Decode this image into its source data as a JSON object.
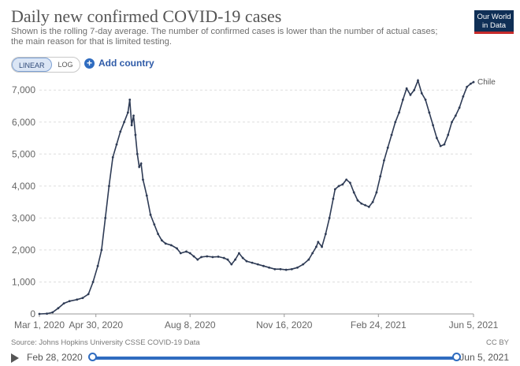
{
  "header": {
    "title": "Daily new confirmed COVID-19 cases",
    "subtitle": "Shown is the rolling 7-day average. The number of confirmed cases is lower than the number of actual cases; the main reason for that is limited testing.",
    "logo_line1": "Our World",
    "logo_line2": "in Data"
  },
  "controls": {
    "linear_label": "LINEAR",
    "log_label": "LOG",
    "add_country_label": "Add country"
  },
  "footer": {
    "source": "Source: Johns Hopkins University CSSE COVID-19 Data",
    "license": "CC BY"
  },
  "timeline": {
    "start_label": "Feb 28, 2020",
    "end_label": "Jun 5, 2021"
  },
  "colors": {
    "series": "#2e3b55",
    "grid": "#dddddd",
    "accent": "#2f6cc0"
  },
  "chart_data": {
    "type": "line",
    "title": "Daily new confirmed COVID-19 cases",
    "xlabel": "",
    "ylabel": "",
    "x_domain_days": [
      0,
      461
    ],
    "ylim": [
      0,
      7400
    ],
    "y_ticks": [
      0,
      1000,
      2000,
      3000,
      4000,
      5000,
      6000,
      7000
    ],
    "y_tick_labels": [
      "0",
      "1,000",
      "2,000",
      "3,000",
      "4,000",
      "5,000",
      "6,000",
      "7,000"
    ],
    "x_ticks": [
      {
        "day": 0,
        "label": "Mar 1, 2020"
      },
      {
        "day": 60,
        "label": "Apr 30, 2020"
      },
      {
        "day": 160,
        "label": "Aug 8, 2020"
      },
      {
        "day": 260,
        "label": "Nov 16, 2020"
      },
      {
        "day": 360,
        "label": "Feb 24, 2021"
      },
      {
        "day": 461,
        "label": "Jun 5, 2021"
      }
    ],
    "series": [
      {
        "name": "Chile",
        "points": [
          [
            0,
            0
          ],
          [
            8,
            10
          ],
          [
            14,
            50
          ],
          [
            20,
            180
          ],
          [
            26,
            330
          ],
          [
            32,
            400
          ],
          [
            40,
            450
          ],
          [
            46,
            500
          ],
          [
            52,
            620
          ],
          [
            57,
            1000
          ],
          [
            62,
            1500
          ],
          [
            66,
            2000
          ],
          [
            70,
            3000
          ],
          [
            74,
            4000
          ],
          [
            78,
            4900
          ],
          [
            82,
            5300
          ],
          [
            86,
            5700
          ],
          [
            90,
            6000
          ],
          [
            94,
            6300
          ],
          [
            96,
            6700
          ],
          [
            98,
            5900
          ],
          [
            100,
            6200
          ],
          [
            102,
            5600
          ],
          [
            104,
            5000
          ],
          [
            106,
            4600
          ],
          [
            108,
            4700
          ],
          [
            110,
            4200
          ],
          [
            114,
            3700
          ],
          [
            118,
            3100
          ],
          [
            122,
            2800
          ],
          [
            126,
            2500
          ],
          [
            130,
            2300
          ],
          [
            134,
            2200
          ],
          [
            140,
            2150
          ],
          [
            146,
            2050
          ],
          [
            150,
            1900
          ],
          [
            156,
            1950
          ],
          [
            160,
            1900
          ],
          [
            164,
            1800
          ],
          [
            168,
            1700
          ],
          [
            172,
            1780
          ],
          [
            178,
            1800
          ],
          [
            184,
            1780
          ],
          [
            190,
            1790
          ],
          [
            196,
            1750
          ],
          [
            200,
            1700
          ],
          [
            204,
            1550
          ],
          [
            208,
            1700
          ],
          [
            212,
            1900
          ],
          [
            216,
            1750
          ],
          [
            220,
            1650
          ],
          [
            226,
            1600
          ],
          [
            232,
            1550
          ],
          [
            238,
            1500
          ],
          [
            244,
            1450
          ],
          [
            250,
            1400
          ],
          [
            256,
            1400
          ],
          [
            262,
            1380
          ],
          [
            268,
            1400
          ],
          [
            274,
            1450
          ],
          [
            280,
            1550
          ],
          [
            286,
            1700
          ],
          [
            290,
            1900
          ],
          [
            294,
            2100
          ],
          [
            296,
            2250
          ],
          [
            300,
            2100
          ],
          [
            304,
            2500
          ],
          [
            308,
            3000
          ],
          [
            312,
            3600
          ],
          [
            314,
            3900
          ],
          [
            318,
            4000
          ],
          [
            322,
            4050
          ],
          [
            326,
            4200
          ],
          [
            330,
            4100
          ],
          [
            334,
            3800
          ],
          [
            338,
            3550
          ],
          [
            342,
            3450
          ],
          [
            346,
            3400
          ],
          [
            350,
            3350
          ],
          [
            354,
            3500
          ],
          [
            358,
            3800
          ],
          [
            362,
            4300
          ],
          [
            366,
            4800
          ],
          [
            370,
            5200
          ],
          [
            374,
            5600
          ],
          [
            378,
            6000
          ],
          [
            382,
            6300
          ],
          [
            386,
            6700
          ],
          [
            390,
            7050
          ],
          [
            394,
            6850
          ],
          [
            398,
            7000
          ],
          [
            402,
            7300
          ],
          [
            406,
            6900
          ],
          [
            410,
            6700
          ],
          [
            414,
            6300
          ],
          [
            418,
            5900
          ],
          [
            422,
            5500
          ],
          [
            426,
            5250
          ],
          [
            430,
            5300
          ],
          [
            434,
            5600
          ],
          [
            438,
            6000
          ],
          [
            442,
            6200
          ],
          [
            446,
            6450
          ],
          [
            450,
            6800
          ],
          [
            454,
            7100
          ],
          [
            458,
            7200
          ],
          [
            461,
            7250
          ]
        ]
      }
    ]
  }
}
